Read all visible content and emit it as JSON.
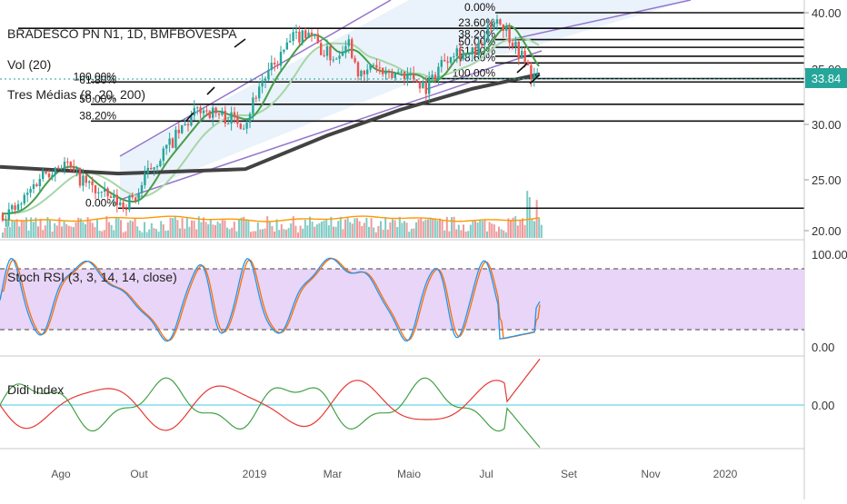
{
  "legend": {
    "symbol": "BRADESCO PN N1, 1D, BMFBOVESPA",
    "volume": "Vol (20)",
    "averages": "Tres Médias (8, 20, 200)",
    "stoch": "Stoch RSI (3, 3, 14, 14, close)",
    "didi": "Didi Index"
  },
  "last_price_tag": "33.84",
  "colors": {
    "up": "#26a69a",
    "down": "#ef5350",
    "ma_fast": "#4caf50",
    "ma_mid": "#a5d6a7",
    "ma_200": "#424242",
    "channel": "#9575cd",
    "stoch_k": "#2196f3",
    "stoch_d": "#ff6d00",
    "stoch_band": "#e1bee7",
    "didi_green": "#43a047",
    "didi_red": "#e53935",
    "didi_base": "#80deea",
    "price_tag": "#26a69a"
  },
  "chart_data": [
    {
      "type": "candlestick",
      "panel": "price",
      "title": "BRADESCO PN N1, 1D, BMFBOVESPA",
      "ylim": [
        19.0,
        41.0
      ],
      "y_ticks": [
        "40.00",
        "35.00",
        "30.00",
        "25.00",
        "20.00"
      ],
      "x_ticks": [
        "Ago",
        "Out",
        "2019",
        "Mar",
        "Maio",
        "Jul",
        "Set",
        "Nov",
        "2020"
      ],
      "last_value": 33.84,
      "close_path": [
        {
          "x": 2,
          "y": 22.0
        },
        {
          "x": 20,
          "y": 22.5
        },
        {
          "x": 45,
          "y": 25.5
        },
        {
          "x": 70,
          "y": 26.6
        },
        {
          "x": 90,
          "y": 25.0
        },
        {
          "x": 110,
          "y": 23.8
        },
        {
          "x": 135,
          "y": 22.8
        },
        {
          "x": 150,
          "y": 23.5
        },
        {
          "x": 165,
          "y": 26.0
        },
        {
          "x": 185,
          "y": 28.0
        },
        {
          "x": 205,
          "y": 30.0
        },
        {
          "x": 220,
          "y": 31.5
        },
        {
          "x": 235,
          "y": 31.0
        },
        {
          "x": 255,
          "y": 30.5
        },
        {
          "x": 270,
          "y": 30.2
        },
        {
          "x": 285,
          "y": 33.5
        },
        {
          "x": 300,
          "y": 35.0
        },
        {
          "x": 320,
          "y": 37.5
        },
        {
          "x": 340,
          "y": 38.5
        },
        {
          "x": 355,
          "y": 36.5
        },
        {
          "x": 370,
          "y": 36.0
        },
        {
          "x": 382,
          "y": 37.8
        },
        {
          "x": 398,
          "y": 34.0
        },
        {
          "x": 412,
          "y": 35.5
        },
        {
          "x": 425,
          "y": 34.0
        },
        {
          "x": 440,
          "y": 34.8
        },
        {
          "x": 455,
          "y": 34.2
        },
        {
          "x": 470,
          "y": 33.3
        },
        {
          "x": 485,
          "y": 35.5
        },
        {
          "x": 500,
          "y": 36.8
        },
        {
          "x": 515,
          "y": 36.0
        },
        {
          "x": 530,
          "y": 37.0
        },
        {
          "x": 545,
          "y": 39.8
        },
        {
          "x": 560,
          "y": 38.0
        },
        {
          "x": 575,
          "y": 36.0
        },
        {
          "x": 585,
          "y": 34.5
        },
        {
          "x": 594,
          "y": 33.8
        }
      ],
      "fibonacci_left": [
        {
          "label": "100.00%",
          "value": 33.8
        },
        {
          "label": "61.80%",
          "value": 33.5
        },
        {
          "label": "50.00%",
          "value": 31.8
        },
        {
          "label": "38.20%",
          "value": 30.3
        },
        {
          "label": "0.00%",
          "value": 22.5
        }
      ],
      "fibonacci_right": [
        {
          "label": "0.00%",
          "value": 40.0
        },
        {
          "label": "23.60%",
          "value": 38.6
        },
        {
          "label": "38.20%",
          "value": 37.6
        },
        {
          "label": "50.00%",
          "value": 36.9
        },
        {
          "label": "61.80%",
          "value": 36.1
        },
        {
          "label": "78.60%",
          "value": 35.5
        },
        {
          "label": "100.00%",
          "value": 34.1
        }
      ],
      "horizontal_levels": [
        40.0,
        38.6,
        37.6,
        36.9,
        36.1,
        35.5,
        34.1,
        33.8,
        31.8,
        30.3,
        22.5
      ]
    },
    {
      "type": "line",
      "panel": "stoch_rsi",
      "title": "Stoch RSI (3, 3, 14, 14, close)",
      "ylim": [
        0,
        100
      ],
      "y_ticks": [
        "100.00",
        "0.00"
      ],
      "bands": [
        80,
        20
      ]
    },
    {
      "type": "line",
      "panel": "didi_index",
      "title": "Didi Index",
      "y_ticks": [
        "0.00"
      ]
    }
  ]
}
